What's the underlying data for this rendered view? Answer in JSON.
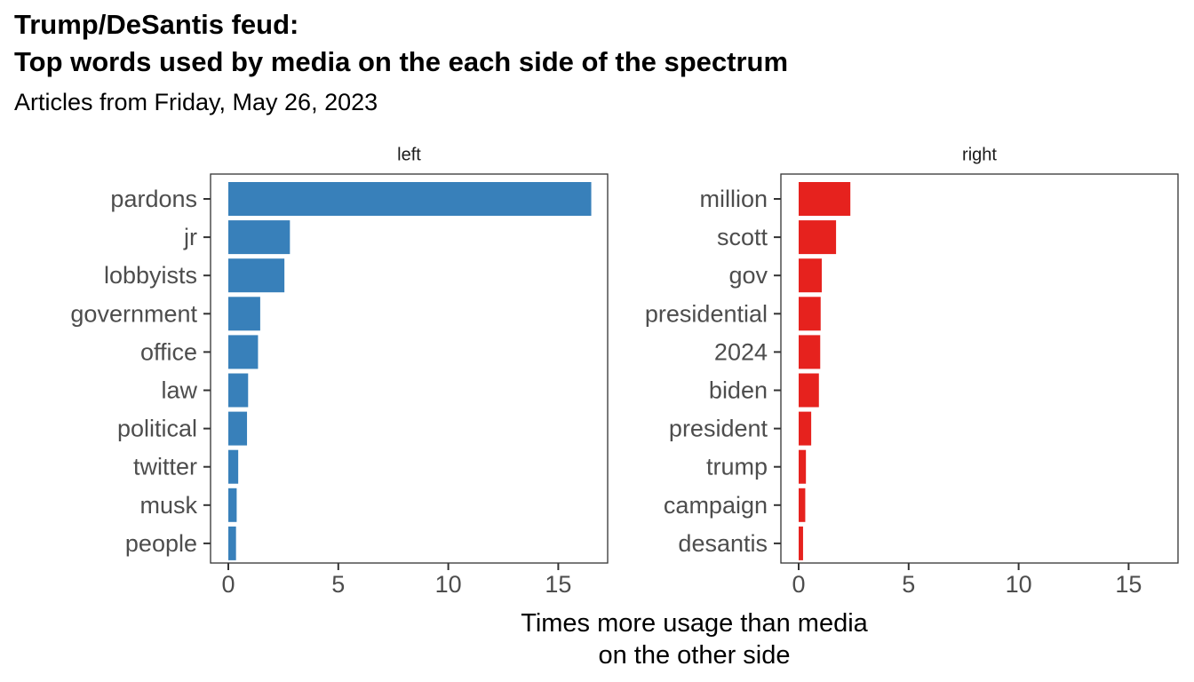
{
  "header": {
    "title_line1": "Trump/DeSantis feud:",
    "title_line2": "Top words used by media on the each side of the spectrum",
    "subtitle": "Articles from Friday, May 26, 2023"
  },
  "chart_data": {
    "type": "bar",
    "orientation": "horizontal",
    "xlabel": [
      "Times more usage than media",
      "on the other side"
    ],
    "xlim": [
      0,
      17.5
    ],
    "xticks": [
      0,
      5,
      10,
      15
    ],
    "grid": false,
    "facets": [
      {
        "label": "left",
        "color": "#3880BA",
        "categories": [
          "pardons",
          "jr",
          "lobbyists",
          "government",
          "office",
          "law",
          "political",
          "twitter",
          "musk",
          "people"
        ],
        "values": [
          16.5,
          2.8,
          2.55,
          1.45,
          1.35,
          0.9,
          0.85,
          0.45,
          0.38,
          0.35
        ]
      },
      {
        "label": "right",
        "color": "#E6221E",
        "categories": [
          "million",
          "scott",
          "gov",
          "presidential",
          "2024",
          "biden",
          "president",
          "trump",
          "campaign",
          "desantis"
        ],
        "values": [
          2.35,
          1.7,
          1.05,
          1.0,
          0.98,
          0.92,
          0.57,
          0.33,
          0.3,
          0.2
        ]
      }
    ]
  }
}
